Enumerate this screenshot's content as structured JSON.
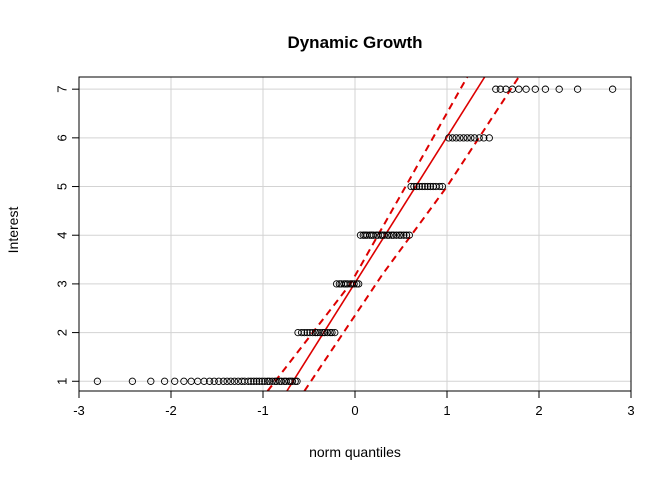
{
  "chart_data": {
    "type": "scatter",
    "subtype": "qq-plot",
    "title": "Dynamic Growth",
    "xlabel": "norm quantiles",
    "ylabel": "Interest",
    "xlim": [
      -3.0,
      3.0
    ],
    "ylim": [
      0.8,
      7.25
    ],
    "xticks": [
      -3,
      -2,
      -1,
      0,
      1,
      2,
      3
    ],
    "yticks": [
      1,
      2,
      3,
      4,
      5,
      6,
      7
    ],
    "grid": true,
    "colors": {
      "points": "#000000",
      "lines": "#dd0000",
      "grid": "#d3d3d3"
    },
    "series": [
      {
        "level": 1,
        "x": [
          -2.8,
          -2.42,
          -2.22,
          -2.07,
          -1.96,
          -1.86,
          -1.78,
          -1.71,
          -1.64,
          -1.58,
          -1.53,
          -1.48,
          -1.43,
          -1.39,
          -1.35,
          -1.31,
          -1.27,
          -1.23,
          -1.2,
          -1.16,
          -1.13,
          -1.1,
          -1.07,
          -1.04,
          -1.01,
          -0.98,
          -0.95,
          -0.93,
          -0.9,
          -0.87,
          -0.85,
          -0.82,
          -0.8,
          -0.77,
          -0.75,
          -0.72,
          -0.7,
          -0.68,
          -0.65,
          -0.63
        ]
      },
      {
        "level": 2,
        "x": [
          -0.62,
          -0.58,
          -0.55,
          -0.52,
          -0.49,
          -0.46,
          -0.43,
          -0.41,
          -0.38,
          -0.35,
          -0.33,
          -0.3,
          -0.27,
          -0.25,
          -0.22
        ]
      },
      {
        "level": 3,
        "x": [
          -0.2,
          -0.17,
          -0.15,
          -0.12,
          -0.1,
          -0.08,
          -0.05,
          -0.03,
          -0.01,
          0.02,
          0.04
        ]
      },
      {
        "level": 4,
        "x": [
          0.06,
          0.09,
          0.11,
          0.13,
          0.16,
          0.18,
          0.2,
          0.23,
          0.25,
          0.28,
          0.3,
          0.32,
          0.35,
          0.37,
          0.4,
          0.42,
          0.45,
          0.48,
          0.5,
          0.53,
          0.56,
          0.59
        ]
      },
      {
        "level": 5,
        "x": [
          0.61,
          0.64,
          0.67,
          0.7,
          0.73,
          0.76,
          0.79,
          0.82,
          0.85,
          0.88,
          0.92,
          0.95
        ]
      },
      {
        "level": 6,
        "x": [
          1.02,
          1.06,
          1.1,
          1.14,
          1.18,
          1.22,
          1.26,
          1.3,
          1.35,
          1.4,
          1.46
        ]
      },
      {
        "level": 7,
        "x": [
          1.53,
          1.58,
          1.64,
          1.71,
          1.78,
          1.86,
          1.96,
          2.07,
          2.22,
          2.42,
          2.8
        ]
      }
    ],
    "reference_line": {
      "x": [
        -0.74,
        1.41
      ],
      "y": [
        0.8,
        7.25
      ]
    },
    "envelope_lower": {
      "x": [
        -0.55,
        0.3,
        1.0,
        1.78
      ],
      "y": [
        0.8,
        3.2,
        5.0,
        7.25
      ]
    },
    "envelope_upper": {
      "x": [
        -0.95,
        -0.05,
        0.55,
        1.22
      ],
      "y": [
        0.8,
        3.0,
        5.0,
        7.25
      ]
    }
  }
}
